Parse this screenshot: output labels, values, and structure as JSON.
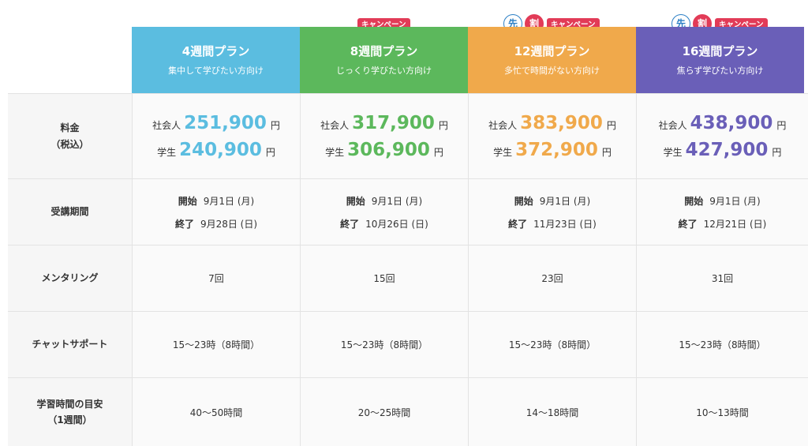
{
  "colors": {
    "plan1": "#5bbde0",
    "plan2": "#5cb85c",
    "plan3": "#f0a94b",
    "plan4": "#6a5fb8",
    "campaign_badge": "#e23b57",
    "sen_circle": "#2b7fc5"
  },
  "badges": {
    "campaign": "キャンペーン",
    "sen": "先",
    "wari": "割"
  },
  "plans": [
    {
      "name": "4週間プラン",
      "desc": "集中して学びたい方向け"
    },
    {
      "name": "8週間プラン",
      "desc": "じっくり学びたい方向け"
    },
    {
      "name": "12週間プラン",
      "desc": "多忙で時間がない方向け"
    },
    {
      "name": "16週間プラン",
      "desc": "焦らず学びたい方向け"
    }
  ],
  "labels": {
    "price": "料金",
    "price_sub": "（税込）",
    "period": "受講期間",
    "mentoring": "メンタリング",
    "chat": "チャットサポート",
    "study": "学習時間の目安",
    "study_sub": "（1週間）"
  },
  "price_terms": {
    "worker": "社会人",
    "student": "学生",
    "yen": "円"
  },
  "period_terms": {
    "start": "開始",
    "end": "終了"
  },
  "prices": [
    {
      "worker": "251,900",
      "student": "240,900"
    },
    {
      "worker": "317,900",
      "student": "306,900"
    },
    {
      "worker": "383,900",
      "student": "372,900"
    },
    {
      "worker": "438,900",
      "student": "427,900"
    }
  ],
  "periods": [
    {
      "start": "9月1日 (月)",
      "end": "9月28日 (日)"
    },
    {
      "start": "9月1日 (月)",
      "end": "10月26日 (日)"
    },
    {
      "start": "9月1日 (月)",
      "end": "11月23日 (日)"
    },
    {
      "start": "9月1日 (月)",
      "end": "12月21日 (日)"
    }
  ],
  "mentoring": [
    "7回",
    "15回",
    "23回",
    "31回"
  ],
  "chat": [
    "15〜23時（8時間）",
    "15〜23時（8時間）",
    "15〜23時（8時間）",
    "15〜23時（8時間）"
  ],
  "study": [
    "40〜50時間",
    "20〜25時間",
    "14〜18時間",
    "10〜13時間"
  ]
}
